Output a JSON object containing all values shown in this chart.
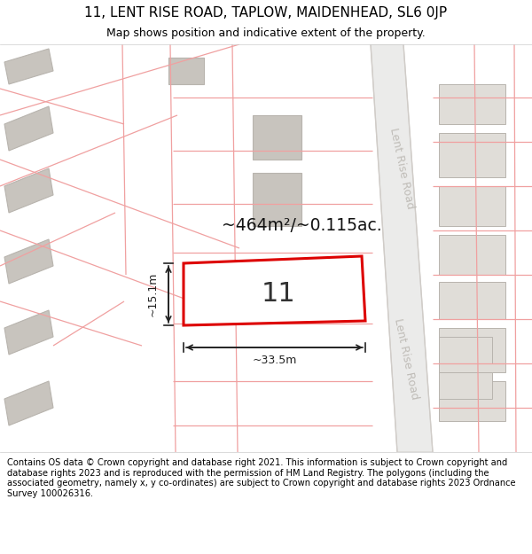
{
  "title_line1": "11, LENT RISE ROAD, TAPLOW, MAIDENHEAD, SL6 0JP",
  "title_line2": "Map shows position and indicative extent of the property.",
  "footer_text": "Contains OS data © Crown copyright and database right 2021. This information is subject to Crown copyright and database rights 2023 and is reproduced with the permission of HM Land Registry. The polygons (including the associated geometry, namely x, y co-ordinates) are subject to Crown copyright and database rights 2023 Ordnance Survey 100026316.",
  "area_label": "~464m²/~0.115ac.",
  "property_number": "11",
  "dim_width": "~33.5m",
  "dim_height": "~15.1m",
  "road_label": "Lent Rise Road",
  "map_bg": "#f7f6f4",
  "building_fill_dark": "#c8c4be",
  "building_fill_light": "#e0ddd8",
  "building_edge": "#b8b4ae",
  "highlight_fill": "#ffffff",
  "highlight_edge": "#dd0000",
  "boundary_line": "#f0a0a0",
  "road_fill": "#f0eeeb",
  "road_edge": "#d0ccc8",
  "dim_color": "#222222",
  "title_bg": "#ffffff",
  "footer_bg": "#ffffff",
  "road_text_color": "#c0bdb8"
}
